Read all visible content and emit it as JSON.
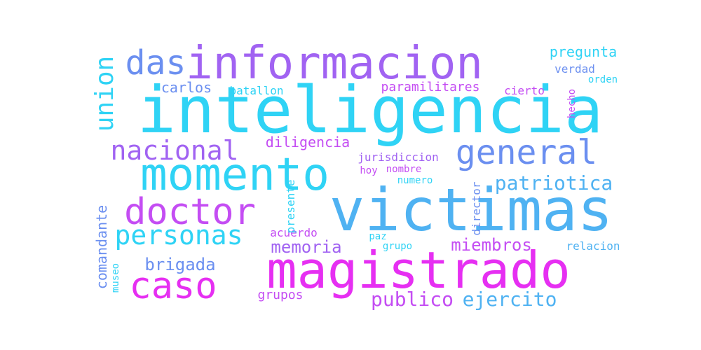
{
  "palette": {
    "cyan": "#2fd3f5",
    "sky": "#4fb2f2",
    "blue": "#6b8ff0",
    "violet": "#a163f2",
    "purple": "#c44df3",
    "magenta": "#e62ff2"
  },
  "words": [
    {
      "text": "inteligencia",
      "color": "cyan"
    },
    {
      "text": "victimas",
      "color": "sky"
    },
    {
      "text": "magistrado",
      "color": "magenta"
    },
    {
      "text": "informacion",
      "color": "violet"
    },
    {
      "text": "momento",
      "color": "cyan"
    },
    {
      "text": "doctor",
      "color": "purple"
    },
    {
      "text": "caso",
      "color": "magenta"
    },
    {
      "text": "general",
      "color": "blue"
    },
    {
      "text": "das",
      "color": "blue"
    },
    {
      "text": "personas",
      "color": "cyan"
    },
    {
      "text": "nacional",
      "color": "violet"
    },
    {
      "text": "union",
      "color": "cyan"
    },
    {
      "text": "publico",
      "color": "purple"
    },
    {
      "text": "ejercito",
      "color": "sky"
    },
    {
      "text": "patriotica",
      "color": "sky"
    },
    {
      "text": "memoria",
      "color": "violet"
    },
    {
      "text": "miembros",
      "color": "purple"
    },
    {
      "text": "brigada",
      "color": "blue"
    },
    {
      "text": "diligencia",
      "color": "purple"
    },
    {
      "text": "pregunta",
      "color": "cyan"
    },
    {
      "text": "paramilitares",
      "color": "purple"
    },
    {
      "text": "carlos",
      "color": "blue"
    },
    {
      "text": "comandante",
      "color": "blue"
    },
    {
      "text": "grupos",
      "color": "purple"
    },
    {
      "text": "batallon",
      "color": "cyan"
    },
    {
      "text": "jurisdiccion",
      "color": "violet"
    },
    {
      "text": "acuerdo",
      "color": "purple"
    },
    {
      "text": "nombre",
      "color": "purple"
    },
    {
      "text": "numero",
      "color": "cyan"
    },
    {
      "text": "hoy",
      "color": "purple"
    },
    {
      "text": "verdad",
      "color": "blue"
    },
    {
      "text": "orden",
      "color": "cyan"
    },
    {
      "text": "cierto",
      "color": "purple"
    },
    {
      "text": "hecho",
      "color": "purple"
    },
    {
      "text": "presente",
      "color": "cyan"
    },
    {
      "text": "director",
      "color": "blue"
    },
    {
      "text": "museo",
      "color": "cyan"
    },
    {
      "text": "paz",
      "color": "cyan"
    },
    {
      "text": "grupo",
      "color": "cyan"
    },
    {
      "text": "relacion",
      "color": "sky"
    }
  ]
}
